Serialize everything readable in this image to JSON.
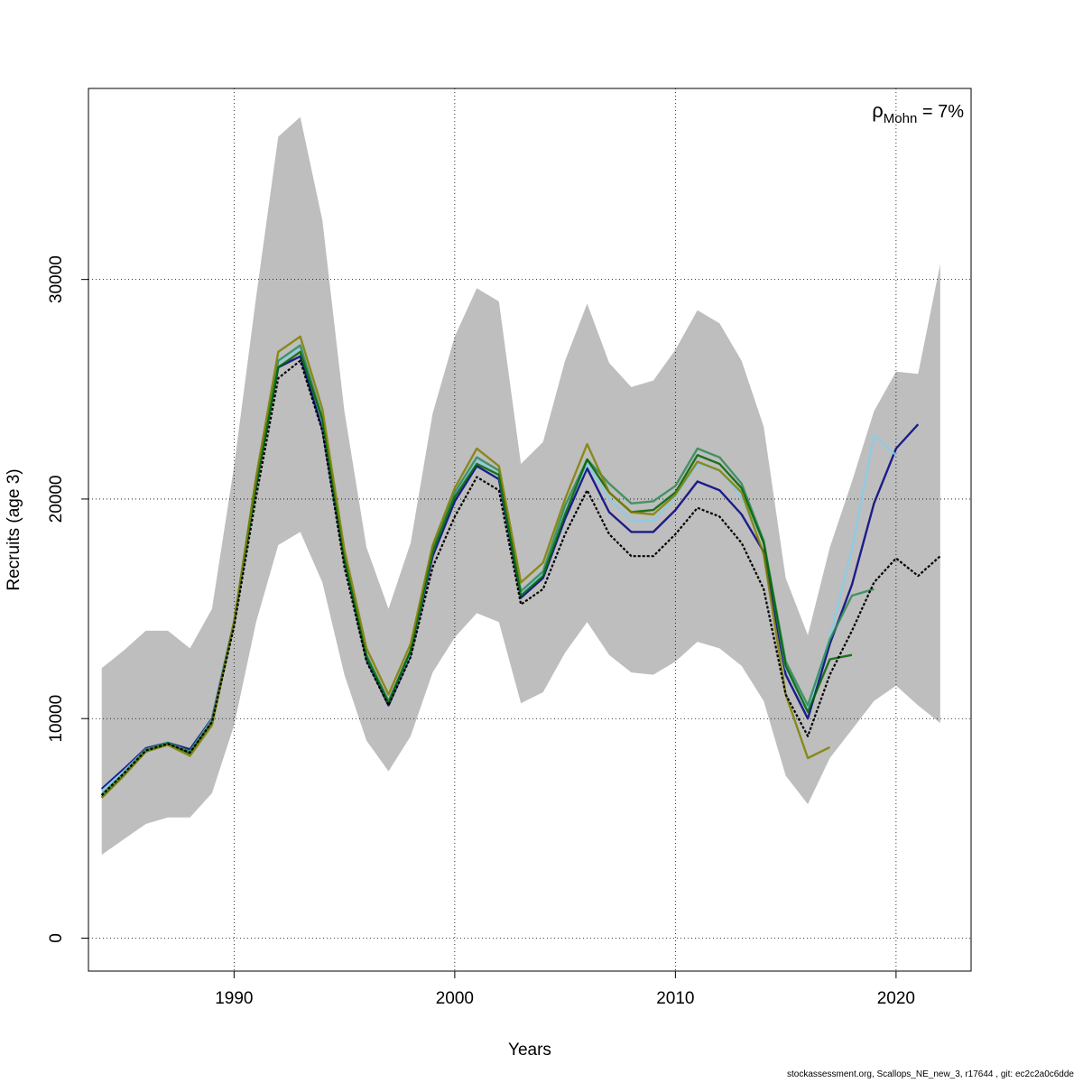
{
  "chart_data": {
    "type": "line",
    "xlabel": "Years",
    "ylabel": "Recruits (age 3)",
    "xlim": [
      1983.4,
      2023.4
    ],
    "ylim": [
      -1500,
      38700
    ],
    "x_ticks": [
      1990,
      2000,
      2010,
      2020
    ],
    "y_ticks": [
      0,
      10000,
      20000,
      30000
    ],
    "grid": true,
    "annotation": {
      "symbol": "ρ",
      "subscript": "Mohn",
      "value": " = 7%"
    },
    "band": {
      "x": [
        1984,
        1985,
        1986,
        1987,
        1988,
        1989,
        1990,
        1991,
        1992,
        1993,
        1994,
        1995,
        1996,
        1997,
        1998,
        1999,
        2000,
        2001,
        2002,
        2003,
        2004,
        2005,
        2006,
        2007,
        2008,
        2009,
        2010,
        2011,
        2012,
        2013,
        2014,
        2015,
        2016,
        2017,
        2018,
        2019,
        2020,
        2021,
        2022
      ],
      "upper": [
        12300,
        13100,
        14000,
        14000,
        13200,
        15000,
        21500,
        29200,
        36500,
        37400,
        32700,
        24000,
        17800,
        15000,
        18000,
        23900,
        27400,
        29600,
        29000,
        21600,
        22600,
        26300,
        28900,
        26200,
        25100,
        25400,
        26800,
        28600,
        28000,
        26300,
        23300,
        16400,
        13800,
        17800,
        20800,
        24000,
        25800,
        25700,
        30700
      ],
      "lower": [
        3800,
        4500,
        5200,
        5500,
        5500,
        6600,
        9700,
        14400,
        17900,
        18500,
        16200,
        12000,
        9000,
        7600,
        9200,
        12100,
        13700,
        14800,
        14400,
        10700,
        11200,
        13000,
        14400,
        12900,
        12100,
        12000,
        12600,
        13500,
        13200,
        12400,
        10800,
        7400,
        6100,
        8200,
        9500,
        10800,
        11500,
        10600,
        9800
      ]
    },
    "series": [
      {
        "color": "#000080",
        "x": [
          1984,
          1985,
          1986,
          1987,
          1988,
          1989,
          1990,
          1991,
          1992,
          1993,
          1994,
          1995,
          1996,
          1997,
          1998,
          1999,
          2000,
          2001,
          2002,
          2003,
          2004,
          2005,
          2006,
          2007,
          2008,
          2009,
          2010,
          2011,
          2012,
          2013,
          2014,
          2015,
          2016,
          2017,
          2018,
          2019,
          2020,
          2021
        ],
        "values": [
          6800,
          7700,
          8650,
          8900,
          8600,
          10000,
          14400,
          20600,
          26000,
          26500,
          23200,
          17200,
          12700,
          10600,
          12900,
          17400,
          19900,
          21500,
          20900,
          15500,
          16400,
          19100,
          21400,
          19400,
          18500,
          18500,
          19500,
          20800,
          20400,
          19300,
          17600,
          12000,
          10000,
          13400,
          16100,
          19800,
          22300,
          23400
        ]
      },
      {
        "color": "#87ceeb",
        "x": [
          1984,
          1985,
          1986,
          1987,
          1988,
          1989,
          1990,
          1991,
          1992,
          1993,
          1994,
          1995,
          1996,
          1997,
          1998,
          1999,
          2000,
          2001,
          2002,
          2003,
          2004,
          2005,
          2006,
          2007,
          2008,
          2009,
          2010,
          2011,
          2012,
          2013,
          2014,
          2015,
          2016,
          2017,
          2018,
          2019,
          2020
        ],
        "values": [
          6700,
          7600,
          8600,
          8850,
          8500,
          9950,
          14400,
          20800,
          26200,
          26900,
          23500,
          17300,
          12800,
          10700,
          13000,
          17600,
          20200,
          21800,
          21100,
          15700,
          16600,
          19400,
          21600,
          20000,
          19000,
          19000,
          20100,
          21600,
          21300,
          20100,
          18100,
          12300,
          10400,
          13700,
          17700,
          22900,
          22000
        ]
      },
      {
        "color": "#2e8b57",
        "x": [
          1984,
          1985,
          1986,
          1987,
          1988,
          1989,
          1990,
          1991,
          1992,
          1993,
          1994,
          1995,
          1996,
          1997,
          1998,
          1999,
          2000,
          2001,
          2002,
          2003,
          2004,
          2005,
          2006,
          2007,
          2008,
          2009,
          2010,
          2011,
          2012,
          2013,
          2014,
          2015,
          2016,
          2017,
          2018,
          2019
        ],
        "values": [
          6550,
          7500,
          8600,
          8900,
          8500,
          9900,
          14400,
          20900,
          26300,
          27000,
          23700,
          17300,
          12900,
          10800,
          13100,
          17800,
          20300,
          21900,
          21300,
          15800,
          16700,
          19700,
          21800,
          20700,
          19800,
          19900,
          20600,
          22300,
          21900,
          20700,
          18100,
          12600,
          10600,
          13600,
          15600,
          15900
        ]
      },
      {
        "color": "#006400",
        "x": [
          1984,
          1985,
          1986,
          1987,
          1988,
          1989,
          1990,
          1991,
          1992,
          1993,
          1994,
          1995,
          1996,
          1997,
          1998,
          1999,
          2000,
          2001,
          2002,
          2003,
          2004,
          2005,
          2006,
          2007,
          2008,
          2009,
          2010,
          2011,
          2012,
          2013,
          2014,
          2015,
          2016,
          2017,
          2018
        ],
        "values": [
          6400,
          7400,
          8500,
          8850,
          8400,
          9800,
          14400,
          20600,
          26000,
          26700,
          23600,
          17300,
          12800,
          10700,
          13100,
          17600,
          20100,
          21600,
          21100,
          15600,
          16500,
          19300,
          21800,
          20300,
          19400,
          19500,
          20300,
          22000,
          21600,
          20500,
          18000,
          12400,
          10300,
          12700,
          12900
        ]
      },
      {
        "color": "#808000",
        "x": [
          1984,
          1985,
          1986,
          1987,
          1988,
          1989,
          1990,
          1991,
          1992,
          1993,
          1994,
          1995,
          1996,
          1997,
          1998,
          1999,
          2000,
          2001,
          2002,
          2003,
          2004,
          2005,
          2006,
          2007,
          2008,
          2009,
          2010,
          2011,
          2012,
          2013,
          2014,
          2015,
          2016,
          2017
        ],
        "values": [
          6400,
          7400,
          8500,
          8800,
          8300,
          9700,
          14400,
          21000,
          26700,
          27400,
          24100,
          17700,
          13200,
          11100,
          13400,
          17900,
          20500,
          22300,
          21500,
          16200,
          17100,
          20000,
          22500,
          20300,
          19400,
          19300,
          20200,
          21700,
          21300,
          20300,
          17500,
          11100,
          8200,
          8700
        ]
      },
      {
        "color": "#000000",
        "dashed": true,
        "x": [
          1984,
          1985,
          1986,
          1987,
          1988,
          1989,
          1990,
          1991,
          1992,
          1993,
          1994,
          1995,
          1996,
          1997,
          1998,
          1999,
          2000,
          2001,
          2002,
          2003,
          2004,
          2005,
          2006,
          2007,
          2008,
          2009,
          2010,
          2011,
          2012,
          2013,
          2014,
          2015,
          2016,
          2017,
          2018,
          2019,
          2020,
          2021,
          2022
        ],
        "values": [
          6500,
          7500,
          8550,
          8850,
          8450,
          9850,
          14200,
          20100,
          25500,
          26300,
          23100,
          16900,
          12600,
          10600,
          12800,
          16900,
          19200,
          21000,
          20400,
          15200,
          15900,
          18400,
          20400,
          18400,
          17400,
          17400,
          18400,
          19600,
          19200,
          18000,
          15900,
          11100,
          9200,
          12000,
          14000,
          16200,
          17300,
          16500,
          17400
        ]
      }
    ]
  },
  "footer": "stockassessment.org, Scallops_NE_new_3, r17644 , git: ec2c2a0c6dde"
}
